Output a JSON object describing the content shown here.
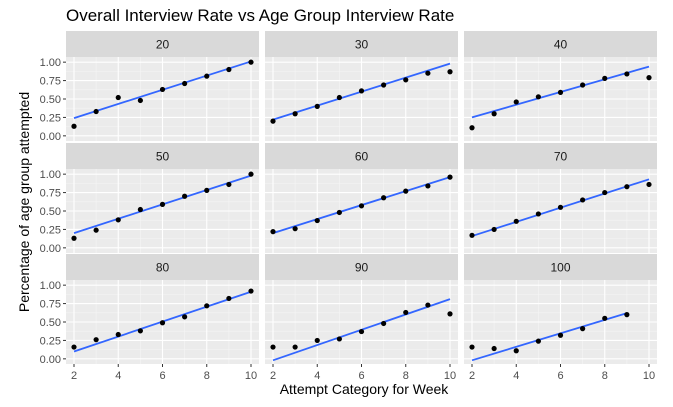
{
  "chart_data": {
    "type": "scatter",
    "title": "Overall Interview Rate vs Age Group Interview Rate",
    "xlabel": "Attempt Category for Week",
    "ylabel": "Percentage of age group attempted",
    "xlim": [
      2,
      10
    ],
    "ylim": [
      -0.07,
      1.07
    ],
    "x_ticks": [
      2,
      4,
      6,
      8,
      10
    ],
    "y_ticks": [
      0.0,
      0.25,
      0.5,
      0.75,
      1.0
    ],
    "y_tick_labels": [
      "0.00",
      "0.25",
      "0.50",
      "0.75",
      "1.00"
    ],
    "grid": true,
    "facets": [
      {
        "label": "20",
        "x": [
          2,
          3,
          4,
          5,
          6,
          7,
          8,
          9,
          10
        ],
        "y": [
          0.13,
          0.33,
          0.52,
          0.48,
          0.63,
          0.71,
          0.81,
          0.9,
          1.0
        ],
        "fit": [
          0.24,
          1.01
        ]
      },
      {
        "label": "30",
        "x": [
          2,
          3,
          4,
          5,
          6,
          7,
          8,
          9,
          10
        ],
        "y": [
          0.2,
          0.3,
          0.4,
          0.52,
          0.61,
          0.69,
          0.76,
          0.85,
          0.87
        ],
        "fit": [
          0.22,
          0.98
        ]
      },
      {
        "label": "40",
        "x": [
          2,
          3,
          4,
          5,
          6,
          7,
          8,
          9,
          10
        ],
        "y": [
          0.11,
          0.3,
          0.46,
          0.53,
          0.59,
          0.69,
          0.78,
          0.84,
          0.79
        ],
        "fit": [
          0.25,
          0.94
        ]
      },
      {
        "label": "50",
        "x": [
          2,
          3,
          4,
          5,
          6,
          7,
          8,
          9,
          10
        ],
        "y": [
          0.13,
          0.24,
          0.38,
          0.52,
          0.59,
          0.7,
          0.78,
          0.86,
          1.0
        ],
        "fit": [
          0.2,
          0.98
        ]
      },
      {
        "label": "60",
        "x": [
          2,
          3,
          4,
          5,
          6,
          7,
          8,
          9,
          10
        ],
        "y": [
          0.22,
          0.26,
          0.37,
          0.48,
          0.57,
          0.68,
          0.77,
          0.84,
          0.96
        ],
        "fit": [
          0.2,
          0.96
        ]
      },
      {
        "label": "70",
        "x": [
          2,
          3,
          4,
          5,
          6,
          7,
          8,
          9,
          10
        ],
        "y": [
          0.17,
          0.25,
          0.36,
          0.46,
          0.55,
          0.65,
          0.75,
          0.83,
          0.86
        ],
        "fit": [
          0.16,
          0.93
        ]
      },
      {
        "label": "80",
        "x": [
          2,
          3,
          4,
          5,
          6,
          7,
          8,
          9,
          10
        ],
        "y": [
          0.16,
          0.26,
          0.33,
          0.38,
          0.49,
          0.57,
          0.72,
          0.82,
          0.92
        ],
        "fit": [
          0.1,
          0.91
        ]
      },
      {
        "label": "90",
        "x": [
          2,
          3,
          4,
          5,
          6,
          7,
          8,
          9,
          10
        ],
        "y": [
          0.16,
          0.16,
          0.25,
          0.27,
          0.37,
          0.48,
          0.63,
          0.73,
          0.61
        ],
        "fit": [
          -0.02,
          0.81
        ]
      },
      {
        "label": "100",
        "x": [
          2,
          3,
          4,
          5,
          6,
          7,
          8,
          9
        ],
        "y": [
          0.16,
          0.14,
          0.11,
          0.24,
          0.32,
          0.41,
          0.55,
          0.6
        ],
        "fit": [
          -0.02,
          0.62
        ],
        "fit_xlim": [
          2,
          9
        ]
      }
    ]
  },
  "colors": {
    "panel_background": "#ebebeb",
    "strip_background": "#d9d9d9",
    "grid_major": "#ffffff",
    "grid_minor": "#f5f5f5",
    "point": "#000000",
    "fit_line": "#3366ff",
    "tick_text": "#4d4d4d"
  }
}
